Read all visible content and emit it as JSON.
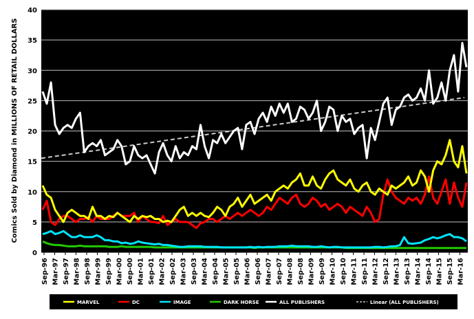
{
  "chart_data": {
    "type": "line",
    "title": "",
    "xlabel": "",
    "ylabel": "Comics Sold by Diamond in MILLIONS OF RETAIL DOLLARS",
    "ylim": [
      0,
      40
    ],
    "yticks": [
      0,
      5,
      10,
      15,
      20,
      25,
      30,
      35,
      40
    ],
    "y_tick_labels": [
      "0",
      "5",
      "10",
      "15",
      "20",
      "25",
      "30",
      "35",
      "40"
    ],
    "grid": true,
    "legend_position": "bottom",
    "background": "#000000",
    "x_tick_labels": [
      "Sep-96",
      "Mar-97",
      "Sep-97",
      "Mar-98",
      "Sep-98",
      "Mar-99",
      "Sep-99",
      "Mar-00",
      "Sep-00",
      "Mar-01",
      "Sep-01",
      "Mar-02",
      "Sep-02",
      "Mar-03",
      "Sep-03",
      "Mar-04",
      "Sep-04",
      "Mar-05",
      "Sep-05",
      "Mar-06",
      "Sep-06",
      "Mar-07",
      "Sep-07",
      "Mar-08",
      "Sep-08",
      "Mar-09",
      "Sep-09",
      "Mar-10",
      "Sep-10",
      "Mar-11",
      "Sep-11",
      "Mar-12",
      "Sep-12",
      "Mar-13",
      "Sep-13",
      "Mar-14",
      "Sep-14",
      "Mar-15",
      "Sep-15",
      "Mar-16"
    ],
    "x_start": "Sep-96",
    "x_end": "Aug-16",
    "series": [
      {
        "name": "MARVEL",
        "color": "#ffff00",
        "values": [
          11.0,
          9.5,
          9.0,
          7.0,
          6.0,
          5.0,
          6.5,
          7.0,
          6.5,
          6.0,
          6.0,
          5.5,
          7.5,
          6.0,
          6.0,
          5.5,
          6.0,
          5.8,
          6.5,
          6.0,
          5.5,
          5.0,
          6.0,
          5.5,
          6.0,
          5.8,
          6.0,
          5.5,
          5.5,
          5.0,
          5.2,
          5.0,
          6.0,
          7.0,
          7.5,
          6.0,
          6.5,
          6.0,
          6.5,
          6.0,
          5.8,
          6.5,
          7.5,
          7.0,
          6.0,
          7.5,
          8.0,
          9.0,
          7.5,
          8.5,
          9.5,
          8.0,
          8.5,
          9.0,
          9.5,
          8.5,
          10.0,
          10.5,
          11.0,
          10.5,
          11.5,
          12.0,
          13.0,
          11.0,
          11.0,
          12.5,
          11.0,
          10.5,
          12.0,
          13.0,
          13.5,
          12.0,
          11.5,
          11.0,
          12.0,
          10.5,
          10.0,
          11.0,
          11.5,
          10.0,
          9.5,
          10.5,
          10.0,
          9.5,
          11.0,
          10.5,
          11.0,
          11.5,
          12.5,
          11.0,
          11.5,
          13.5,
          12.5,
          10.0,
          13.5,
          15.0,
          14.5,
          16.0,
          18.5,
          15.0,
          14.0,
          17.5,
          13.0
        ]
      },
      {
        "name": "DC",
        "color": "#ff0000",
        "values": [
          7.0,
          8.5,
          5.0,
          4.5,
          5.5,
          6.0,
          6.0,
          5.5,
          5.0,
          5.5,
          5.5,
          5.8,
          5.0,
          6.0,
          5.5,
          5.5,
          5.5,
          6.0,
          6.5,
          6.0,
          6.0,
          6.0,
          6.5,
          5.0,
          6.0,
          5.5,
          5.0,
          5.0,
          4.8,
          6.0,
          4.5,
          5.0,
          5.5,
          5.0,
          5.0,
          5.0,
          4.5,
          4.0,
          4.8,
          5.0,
          5.5,
          5.5,
          5.0,
          5.5,
          6.0,
          5.5,
          6.0,
          6.5,
          6.0,
          6.5,
          7.0,
          6.5,
          6.0,
          6.5,
          7.5,
          7.0,
          8.0,
          9.0,
          8.5,
          8.0,
          9.0,
          9.5,
          8.0,
          7.5,
          8.0,
          9.0,
          8.5,
          7.5,
          8.0,
          7.0,
          7.5,
          8.0,
          7.5,
          6.5,
          7.5,
          7.0,
          6.5,
          6.0,
          7.5,
          6.5,
          5.0,
          5.5,
          9.5,
          12.0,
          10.0,
          9.0,
          8.5,
          8.0,
          9.0,
          8.5,
          9.0,
          8.0,
          9.5,
          12.5,
          9.0,
          8.0,
          10.0,
          12.0,
          8.0,
          11.5,
          9.0,
          7.5,
          11.5
        ]
      },
      {
        "name": "IMAGE",
        "color": "#00e5ff",
        "values": [
          3.0,
          3.2,
          3.5,
          3.0,
          3.2,
          3.5,
          3.0,
          2.5,
          2.5,
          2.8,
          2.5,
          2.5,
          2.5,
          2.8,
          2.5,
          2.0,
          2.0,
          1.8,
          1.8,
          1.5,
          1.6,
          1.4,
          1.5,
          1.8,
          1.6,
          1.5,
          1.4,
          1.3,
          1.4,
          1.2,
          1.2,
          1.1,
          1.0,
          0.9,
          0.9,
          1.0,
          1.0,
          1.0,
          1.0,
          0.9,
          0.9,
          0.9,
          0.9,
          0.8,
          0.8,
          0.8,
          0.8,
          0.8,
          0.8,
          0.8,
          0.9,
          0.8,
          0.9,
          0.8,
          0.9,
          0.9,
          0.9,
          1.0,
          1.0,
          1.0,
          1.1,
          1.0,
          1.0,
          1.0,
          1.0,
          0.9,
          0.9,
          1.0,
          0.9,
          0.8,
          0.9,
          0.9,
          0.8,
          0.8,
          0.8,
          0.8,
          0.8,
          0.8,
          0.8,
          0.8,
          0.9,
          0.9,
          0.8,
          0.9,
          1.0,
          1.0,
          1.2,
          2.5,
          1.5,
          1.4,
          1.5,
          1.6,
          2.0,
          2.2,
          2.5,
          2.3,
          2.5,
          2.8,
          3.0,
          2.5,
          2.5,
          2.3,
          1.8
        ]
      },
      {
        "name": "DARK HORSE",
        "color": "#22cc00",
        "values": [
          1.8,
          1.5,
          1.3,
          1.2,
          1.2,
          1.1,
          1.0,
          1.0,
          1.0,
          1.1,
          1.0,
          1.0,
          1.0,
          1.0,
          1.0,
          1.0,
          0.9,
          0.9,
          0.9,
          1.0,
          0.9,
          0.9,
          0.9,
          0.9,
          0.9,
          0.9,
          0.9,
          0.8,
          0.8,
          0.8,
          0.8,
          0.8,
          0.8,
          0.8,
          0.8,
          0.8,
          0.8,
          0.8,
          0.8,
          0.8,
          0.8,
          0.8,
          0.8,
          0.8,
          0.8,
          0.8,
          0.8,
          0.8,
          0.8,
          0.8,
          0.8,
          0.7,
          0.8,
          0.8,
          0.8,
          0.8,
          0.8,
          0.8,
          0.8,
          0.8,
          0.8,
          0.8,
          0.8,
          0.8,
          0.8,
          0.8,
          0.8,
          0.8,
          0.8,
          0.8,
          0.8,
          0.8,
          0.8,
          0.7,
          0.7,
          0.7,
          0.7,
          0.7,
          0.7,
          0.7,
          0.7,
          0.7,
          0.7,
          0.7,
          0.7,
          0.7,
          0.7,
          0.7,
          0.7,
          0.7,
          0.7,
          0.7,
          0.7,
          0.7,
          0.7,
          0.7,
          0.7,
          0.7,
          0.7,
          0.7,
          0.7,
          0.7,
          0.7
        ]
      },
      {
        "name": "ALL PUBLISHERS",
        "color": "#ffffff",
        "values": [
          26.5,
          24.5,
          28.0,
          21.0,
          19.5,
          20.5,
          21.0,
          20.5,
          22.0,
          23.0,
          16.5,
          17.5,
          18.0,
          17.5,
          18.5,
          16.0,
          16.5,
          17.0,
          18.5,
          17.5,
          14.5,
          15.0,
          17.5,
          16.0,
          15.5,
          16.0,
          14.5,
          13.0,
          16.5,
          18.0,
          16.0,
          15.0,
          17.5,
          15.5,
          16.5,
          16.0,
          17.5,
          17.0,
          21.0,
          17.5,
          15.5,
          18.5,
          18.0,
          19.5,
          18.0,
          19.0,
          20.0,
          20.5,
          17.0,
          21.0,
          21.5,
          19.5,
          22.0,
          23.0,
          21.5,
          24.0,
          22.5,
          24.5,
          23.0,
          24.5,
          21.5,
          22.0,
          24.0,
          23.5,
          22.0,
          23.0,
          25.0,
          20.0,
          21.5,
          24.0,
          23.5,
          20.0,
          22.5,
          21.5,
          22.0,
          19.5,
          20.5,
          21.0,
          15.5,
          20.5,
          18.5,
          21.5,
          24.5,
          25.5,
          21.0,
          23.5,
          24.0,
          25.5,
          26.0,
          25.0,
          25.5,
          27.0,
          25.0,
          30.0,
          24.5,
          25.5,
          28.0,
          25.0,
          30.0,
          32.5,
          26.5,
          34.5,
          30.5
        ]
      },
      {
        "name": "Linear (ALL PUBLISHERS)",
        "color": "#cccccc",
        "dashed": true,
        "start": 15.5,
        "end": 25.5
      }
    ]
  }
}
